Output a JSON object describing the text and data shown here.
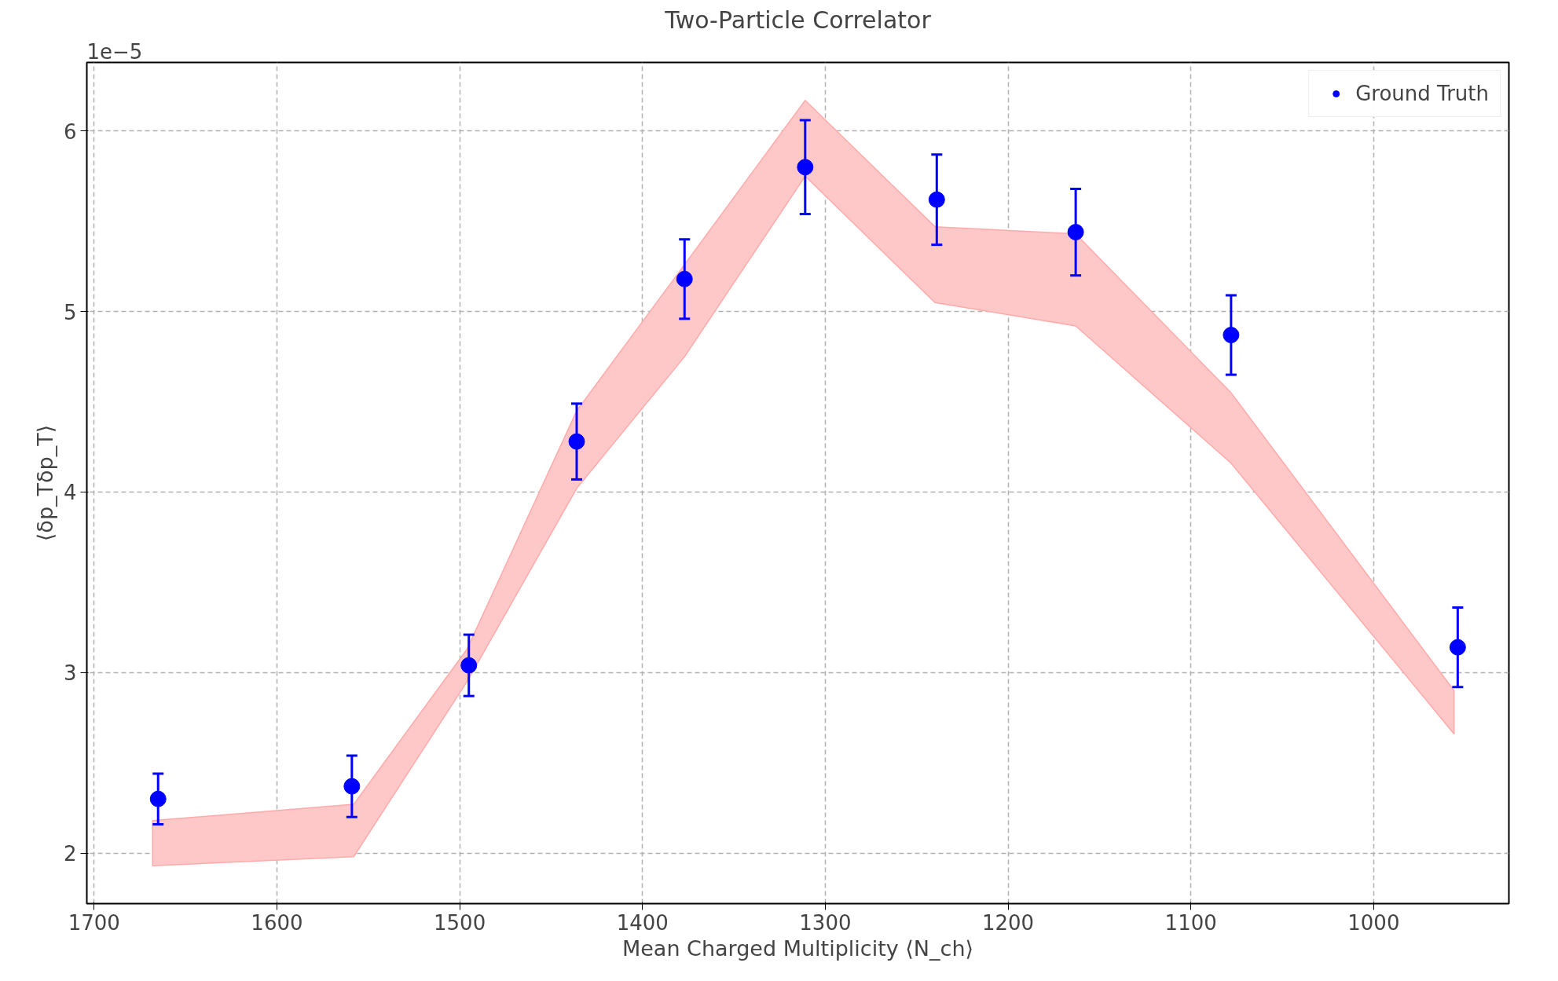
{
  "chart_data": {
    "type": "scatter",
    "title": "Two-Particle Correlator",
    "xlabel": "Mean Charged Multiplicity ⟨N_ch⟩",
    "ylabel": "⟨δp_Tδp_T⟩",
    "annotations": [
      "1e−5"
    ],
    "x": [
      1665,
      1559,
      1495,
      1436,
      1377,
      1311,
      1239,
      1163,
      1078,
      954
    ],
    "xlim": [
      1704,
      926
    ],
    "xticks": [
      1700,
      1600,
      1500,
      1400,
      1300,
      1200,
      1100,
      1000
    ],
    "ylim": [
      1.72,
      6.38
    ],
    "yticks": [
      2,
      3,
      4,
      5,
      6
    ],
    "grid": true,
    "legend": "top right",
    "marker": "circle",
    "series": [
      {
        "type": "area",
        "color": "#ffc8c8",
        "x": [
          1668,
          1558,
          1496,
          1436,
          1377,
          1311,
          1240,
          1163,
          1078,
          956
        ],
        "values": [
          null,
          null,
          null,
          null,
          null,
          null,
          null,
          null,
          null,
          null
        ],
        "lower": [
          1.93,
          1.98,
          2.95,
          4.02,
          4.75,
          5.75,
          5.05,
          4.92,
          4.16,
          2.66
        ],
        "upper": [
          2.18,
          2.27,
          3.13,
          4.45,
          5.26,
          6.17,
          5.47,
          5.43,
          4.55,
          2.9
        ]
      },
      {
        "name": "Ground Truth",
        "color": "#0000ff",
        "values": [
          2.3,
          2.37,
          3.04,
          4.28,
          5.18,
          5.8,
          5.62,
          5.44,
          4.87,
          3.14
        ],
        "errors": [
          0.14,
          0.17,
          0.17,
          0.21,
          0.22,
          0.26,
          0.25,
          0.24,
          0.22,
          0.22
        ]
      }
    ]
  }
}
